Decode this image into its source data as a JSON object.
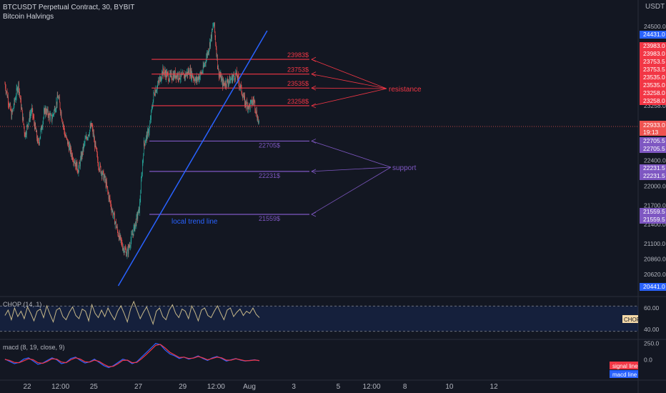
{
  "header": {
    "title": "BTCUSDT Perpetual Contract, 30, BYBIT",
    "indicator": "Bitcoin Halvings",
    "currency": "USDT"
  },
  "colors": {
    "background": "#131722",
    "up_candle": "#26a69a",
    "down_candle": "#ef5350",
    "resistance": "#f23645",
    "support": "#7e57c2",
    "trendline": "#2962ff",
    "chop": "#c7b889",
    "macd_line": "#2962ff",
    "signal_line": "#f23645"
  },
  "chart_data": [
    {
      "type": "candlestick",
      "title": "BTCUSDT Perpetual Contract, 30, BYBIT",
      "ylim": [
        20441,
        24622
      ],
      "y_ticks": [
        24500,
        23983,
        23753,
        23535,
        23258,
        22933,
        22705,
        22400,
        22231,
        22000,
        21700,
        21559,
        21400,
        21100,
        20860,
        20620
      ],
      "x_ticks": [
        "22",
        "12:00",
        "25",
        "27",
        "29",
        "12:00",
        "Aug",
        "3",
        "5",
        "12:00",
        "8",
        "10",
        "12"
      ],
      "x_tick_days": [
        22,
        23.5,
        25,
        27,
        29,
        30.5,
        32,
        34,
        36,
        37.5,
        39,
        41,
        43
      ],
      "price_path": [
        [
          21.0,
          23600
        ],
        [
          21.3,
          23100
        ],
        [
          21.6,
          23600
        ],
        [
          21.9,
          22800
        ],
        [
          22.2,
          23200
        ],
        [
          22.5,
          22650
        ],
        [
          22.8,
          23200
        ],
        [
          23.1,
          23050
        ],
        [
          23.4,
          23400
        ],
        [
          23.7,
          22800
        ],
        [
          24.0,
          22500
        ],
        [
          24.3,
          22250
        ],
        [
          24.6,
          22700
        ],
        [
          24.9,
          22950
        ],
        [
          25.2,
          22350
        ],
        [
          25.5,
          22100
        ],
        [
          25.8,
          21650
        ],
        [
          26.1,
          21250
        ],
        [
          26.3,
          21050
        ],
        [
          26.5,
          20950
        ],
        [
          26.7,
          21200
        ],
        [
          26.9,
          21450
        ],
        [
          27.05,
          21650
        ],
        [
          27.25,
          22650
        ],
        [
          27.5,
          22900
        ],
        [
          27.7,
          23450
        ],
        [
          27.9,
          23600
        ],
        [
          28.1,
          23800
        ],
        [
          28.4,
          23700
        ],
        [
          28.7,
          23750
        ],
        [
          29.0,
          23700
        ],
        [
          29.3,
          23800
        ],
        [
          29.6,
          23650
        ],
        [
          29.9,
          23800
        ],
        [
          30.2,
          24200
        ],
        [
          30.4,
          24550
        ],
        [
          30.6,
          23800
        ],
        [
          30.8,
          23600
        ],
        [
          31.1,
          23650
        ],
        [
          31.4,
          23750
        ],
        [
          31.6,
          23550
        ],
        [
          31.8,
          23300
        ],
        [
          32.0,
          23250
        ],
        [
          32.2,
          23350
        ],
        [
          32.45,
          22933
        ]
      ],
      "last_price": {
        "value": 22933.0,
        "label": "22933.0",
        "countdown": "19:13"
      },
      "axis_labels": [
        {
          "value": 24431.0,
          "label": "24431.0",
          "kind": "trend"
        },
        {
          "value": 23983.0,
          "label": "23983.0",
          "kind": "res"
        },
        {
          "value": 23983.0,
          "label": "23983.0",
          "kind": "res"
        },
        {
          "value": 23753.5,
          "label": "23753.5",
          "kind": "res"
        },
        {
          "value": 23753.5,
          "label": "23753.5",
          "kind": "res"
        },
        {
          "value": 23535.0,
          "label": "23535.0",
          "kind": "res"
        },
        {
          "value": 23535.0,
          "label": "23535.0",
          "kind": "res"
        },
        {
          "value": 23258.0,
          "label": "23258.0",
          "kind": "res"
        },
        {
          "value": 23258.0,
          "label": "23258.0",
          "kind": "res"
        },
        {
          "value": 22705.5,
          "label": "22705.5",
          "kind": "sup"
        },
        {
          "value": 22705.5,
          "label": "22705.5",
          "kind": "sup"
        },
        {
          "value": 22231.5,
          "label": "22231.5",
          "kind": "sup"
        },
        {
          "value": 22231.5,
          "label": "22231.5",
          "kind": "sup"
        },
        {
          "value": 21559.5,
          "label": "21559.5",
          "kind": "sup"
        },
        {
          "value": 21559.5,
          "label": "21559.5",
          "kind": "sup"
        },
        {
          "value": 20441.0,
          "label": "20441.0",
          "kind": "trend"
        }
      ],
      "resistance_levels": [
        {
          "price": 23983,
          "label": "23983$",
          "start_day": 27.6
        },
        {
          "price": 23753,
          "label": "23753$",
          "start_day": 27.6
        },
        {
          "price": 23535,
          "label": "23535$",
          "start_day": 27.6
        },
        {
          "price": 23258,
          "label": "23258$",
          "start_day": 27.6
        }
      ],
      "support_levels": [
        {
          "price": 22705,
          "label": "22705$",
          "start_day": 27.5
        },
        {
          "price": 22231,
          "label": "22231$",
          "start_day": 27.5
        },
        {
          "price": 21559,
          "label": "21559$",
          "start_day": 27.5
        }
      ],
      "resistance_annotation": "resistance",
      "support_annotation": "support",
      "trendline": {
        "label": "local trend line",
        "from": [
          26.1,
          20441
        ],
        "to": [
          32.8,
          24431
        ]
      }
    },
    {
      "type": "line",
      "title": "CHOP (14, 1)",
      "series": [
        {
          "name": "CHOP",
          "values": [
            53,
            58,
            49,
            60,
            52,
            57,
            50,
            61,
            55,
            48,
            57,
            59,
            51,
            62,
            54,
            47,
            58,
            60,
            52,
            49,
            56,
            61,
            53,
            50,
            59,
            57,
            48,
            63,
            55,
            51,
            58,
            52,
            60,
            54,
            49,
            57,
            62,
            55,
            47,
            59,
            66,
            58,
            50,
            56,
            61,
            53,
            45,
            57,
            60,
            52,
            49,
            58,
            63,
            55,
            51,
            59,
            57,
            50,
            62,
            56,
            48,
            58,
            60,
            53,
            51,
            57,
            62,
            55,
            49,
            58,
            60,
            52,
            56,
            59,
            53,
            57,
            55,
            60,
            54,
            51
          ]
        }
      ],
      "y_ticks": [
        60.0,
        40.0
      ],
      "ylim": [
        30,
        70
      ],
      "band": [
        38.2,
        61.8
      ],
      "badge": "CHOP"
    },
    {
      "type": "line",
      "title": "macd (8, 19, close, 9)",
      "series": [
        {
          "name": "macd line",
          "values": [
            10,
            -25,
            -60,
            -40,
            10,
            30,
            -20,
            -70,
            -50,
            -10,
            30,
            0,
            -60,
            -40,
            20,
            40,
            -10,
            -50,
            -30,
            10,
            -40,
            -90,
            -120,
            -90,
            -40,
            10,
            -10,
            -60,
            -30,
            40,
            110,
            180,
            250,
            230,
            150,
            90,
            60,
            20,
            40,
            10,
            30,
            60,
            20,
            -10,
            30,
            50,
            20,
            -20,
            0,
            20,
            -5,
            -20,
            -10,
            0,
            -15
          ]
        },
        {
          "name": "signal line",
          "values": [
            5,
            -10,
            -40,
            -45,
            -15,
            15,
            0,
            -45,
            -55,
            -25,
            15,
            10,
            -35,
            -45,
            0,
            30,
            10,
            -30,
            -35,
            -5,
            -25,
            -70,
            -105,
            -100,
            -60,
            -10,
            -5,
            -45,
            -40,
            15,
            80,
            150,
            220,
            235,
            180,
            115,
            75,
            35,
            40,
            20,
            25,
            50,
            30,
            0,
            20,
            40,
            30,
            -5,
            -5,
            15,
            0,
            -15,
            -12,
            -4,
            -12
          ]
        }
      ],
      "y_ticks": [
        250.0,
        0.0
      ],
      "ylim": [
        -300,
        300
      ],
      "badges": [
        "signal line",
        "macd line"
      ]
    }
  ]
}
